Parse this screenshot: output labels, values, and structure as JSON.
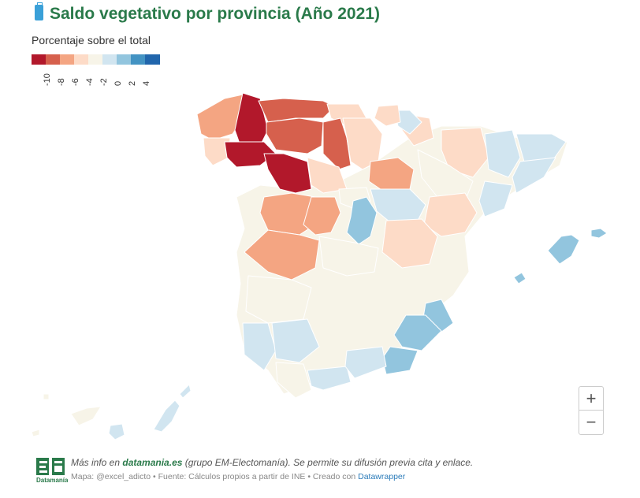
{
  "header": {
    "title": "Saldo vegetativo por provincia (Año 2021)",
    "title_icon": "luggage-icon"
  },
  "legend": {
    "title": "Porcentaje sobre el total",
    "ticks": [
      "-10",
      "-8",
      "-6",
      "-4",
      "-2",
      "0",
      "2",
      "4"
    ],
    "colors": [
      "#b2182b",
      "#d6604d",
      "#f4a582",
      "#fddbc7",
      "#f7f4e8",
      "#d1e5f0",
      "#92c5de",
      "#4393c3",
      "#2166ac"
    ]
  },
  "map": {
    "type": "choropleth",
    "regions": [
      {
        "name": "A Coruña",
        "color": "#f4a582"
      },
      {
        "name": "Lugo",
        "color": "#b2182b"
      },
      {
        "name": "Ourense",
        "color": "#b2182b"
      },
      {
        "name": "Pontevedra",
        "color": "#fddbc7"
      },
      {
        "name": "Asturias",
        "color": "#d6604d"
      },
      {
        "name": "León",
        "color": "#d6604d"
      },
      {
        "name": "Palencia",
        "color": "#d6604d"
      },
      {
        "name": "Zamora",
        "color": "#b2182b"
      },
      {
        "name": "Cantabria",
        "color": "#fddbc7"
      },
      {
        "name": "Burgos",
        "color": "#fddbc7"
      },
      {
        "name": "Soria",
        "color": "#f4a582"
      },
      {
        "name": "Salamanca",
        "color": "#f4a582"
      },
      {
        "name": "Ávila",
        "color": "#f4a582"
      },
      {
        "name": "Cáceres",
        "color": "#f4a582"
      },
      {
        "name": "Madrid",
        "color": "#92c5de"
      },
      {
        "name": "Guadalajara",
        "color": "#d1e5f0"
      },
      {
        "name": "Teruel",
        "color": "#fddbc7"
      },
      {
        "name": "Cuenca",
        "color": "#fddbc7"
      },
      {
        "name": "Huesca",
        "color": "#fddbc7"
      },
      {
        "name": "Murcia",
        "color": "#92c5de"
      },
      {
        "name": "Almería",
        "color": "#92c5de"
      },
      {
        "name": "Baleares",
        "color": "#92c5de"
      }
    ]
  },
  "controls": {
    "zoom_in": "+",
    "zoom_out": "−"
  },
  "footer": {
    "logo_text": "Datamanía",
    "line1_prefix": "Más info en ",
    "line1_link": "datamania.es",
    "line1_suffix": " (grupo EM-Electomanía). Se permite su difusión previa cita y enlace.",
    "line2_text": "Mapa: @excel_adicto • Fuente: Cálculos propios a partir de INE • Creado con ",
    "line2_link": "Datawrapper"
  }
}
